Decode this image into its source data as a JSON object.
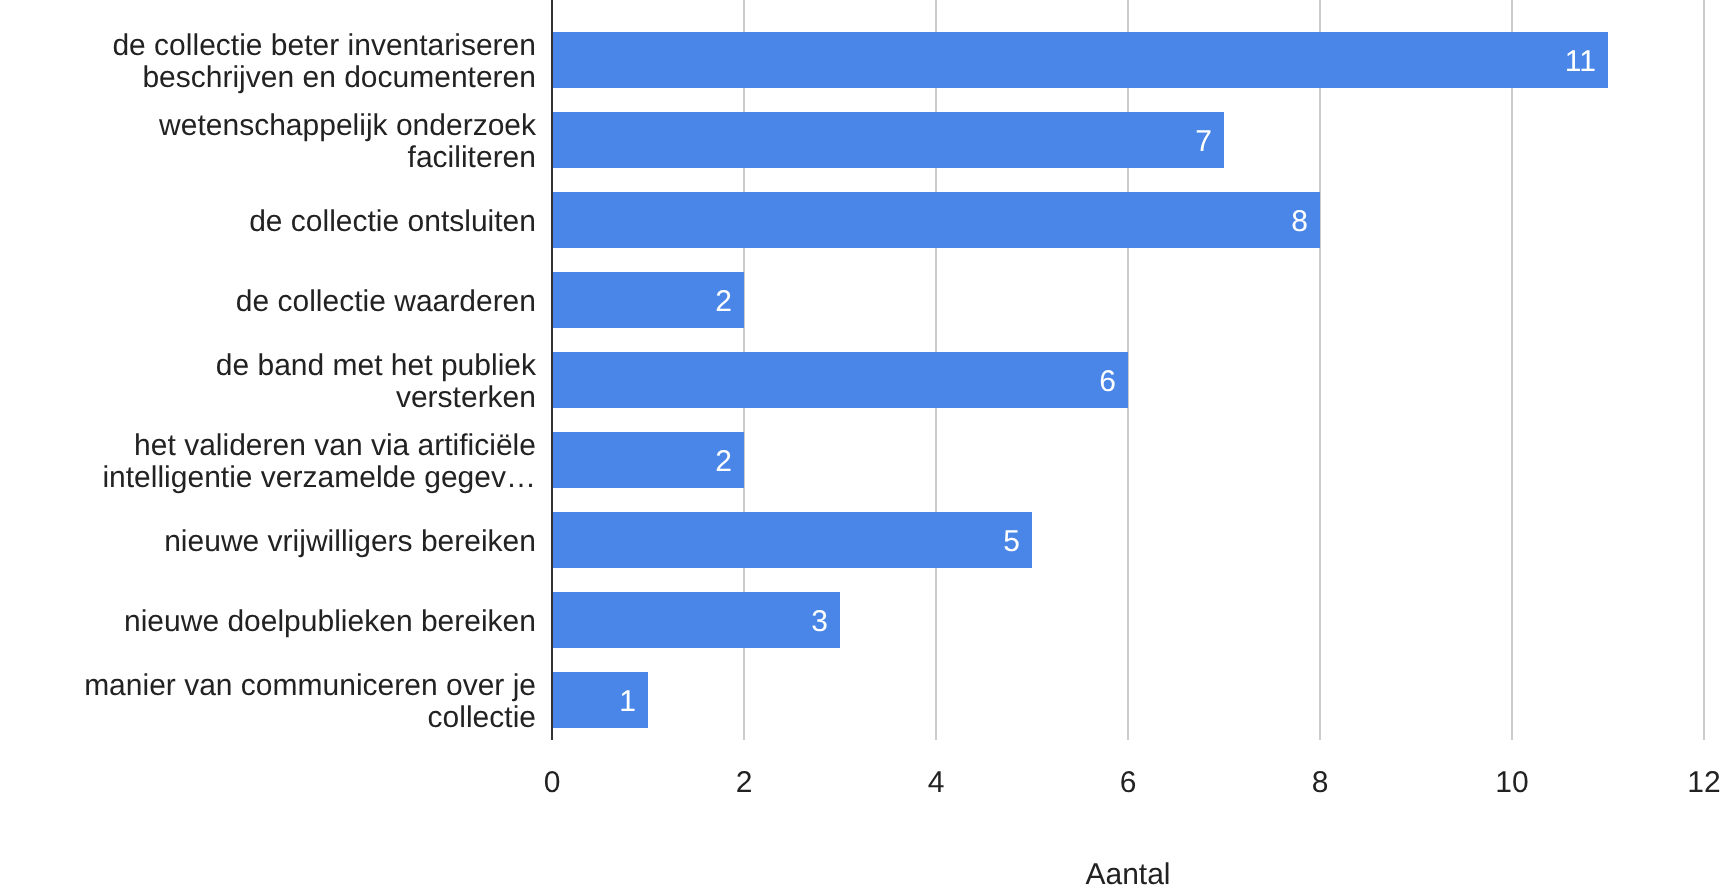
{
  "chart_data": {
    "type": "bar",
    "orientation": "horizontal",
    "xlabel": "Aantal",
    "categories": [
      "de collectie beter inventariseren beschrijven en documenteren",
      "wetenschappelijk onderzoek faciliteren",
      "de collectie ontsluiten",
      "de collectie waarderen",
      "de band met het publiek versterken",
      "het valideren van via artificiële intelligentie verzamelde gegev…",
      "nieuwe vrijwilligers bereiken",
      "nieuwe doelpublieken bereiken",
      "manier van communiceren over je collectie"
    ],
    "values": [
      11,
      7,
      8,
      2,
      6,
      2,
      5,
      3,
      1
    ],
    "color": "#4a86e8",
    "xlim": [
      0,
      12
    ],
    "xticks": [
      0,
      2,
      4,
      6,
      8,
      10,
      12
    ],
    "grid": "x",
    "data_labels": true
  }
}
